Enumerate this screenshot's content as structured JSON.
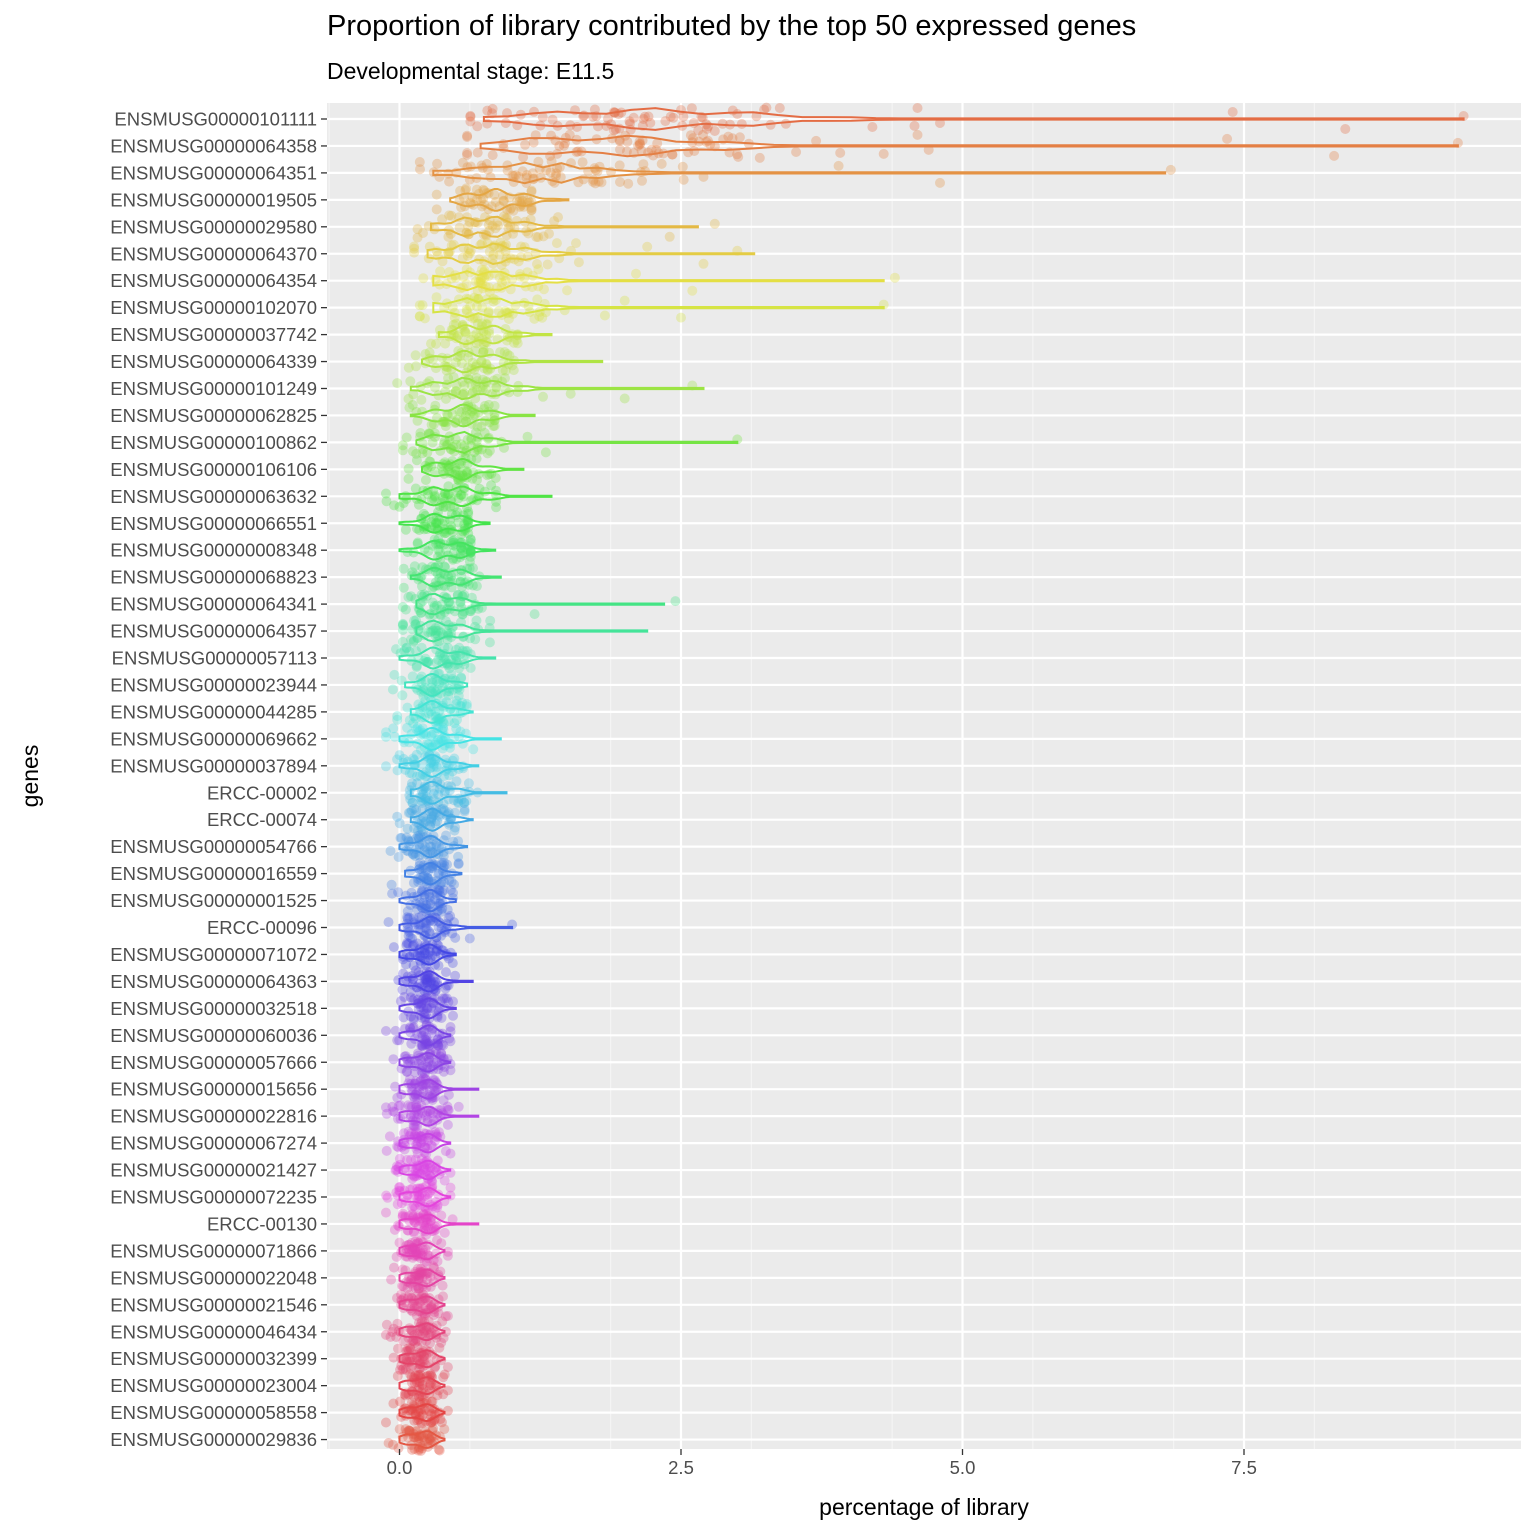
{
  "chart_data": {
    "type": "violin-jitter",
    "title": "Proportion of library contributed by the top 50 expressed genes",
    "subtitle": "Developmental stage: E11.5",
    "xlabel": "percentage of library",
    "ylabel": "genes",
    "xlim": [
      -0.65,
      9.8
    ],
    "x_ticks": [
      0.0,
      2.5,
      5.0,
      7.5
    ],
    "x_tick_labels": [
      "0.0",
      "2.5",
      "5.0",
      "7.5"
    ],
    "grid": true,
    "legend": "none",
    "categories": [
      "ENSMUSG00000101111",
      "ENSMUSG00000064358",
      "ENSMUSG00000064351",
      "ENSMUSG00000019505",
      "ENSMUSG00000029580",
      "ENSMUSG00000064370",
      "ENSMUSG00000064354",
      "ENSMUSG00000102070",
      "ENSMUSG00000037742",
      "ENSMUSG00000064339",
      "ENSMUSG00000101249",
      "ENSMUSG00000062825",
      "ENSMUSG00000100862",
      "ENSMUSG00000106106",
      "ENSMUSG00000063632",
      "ENSMUSG00000066551",
      "ENSMUSG00000008348",
      "ENSMUSG00000068823",
      "ENSMUSG00000064341",
      "ENSMUSG00000064357",
      "ENSMUSG00000057113",
      "ENSMUSG00000023944",
      "ENSMUSG00000044285",
      "ENSMUSG00000069662",
      "ENSMUSG00000037894",
      "ERCC-00002",
      "ERCC-00074",
      "ENSMUSG00000054766",
      "ENSMUSG00000016559",
      "ENSMUSG00000001525",
      "ERCC-00096",
      "ENSMUSG00000071072",
      "ENSMUSG00000064363",
      "ENSMUSG00000032518",
      "ENSMUSG00000060036",
      "ENSMUSG00000057666",
      "ENSMUSG00000015656",
      "ENSMUSG00000022816",
      "ENSMUSG00000067274",
      "ENSMUSG00000021427",
      "ENSMUSG00000072235",
      "ERCC-00130",
      "ENSMUSG00000071866",
      "ENSMUSG00000022048",
      "ENSMUSG00000021546",
      "ENSMUSG00000046434",
      "ENSMUSG00000032399",
      "ENSMUSG00000023004",
      "ENSMUSG00000058558",
      "ENSMUSG00000029836"
    ],
    "series": [
      {
        "min": 0.75,
        "max": 9.45,
        "center": 2.2,
        "spread": 0.95
      },
      {
        "min": 0.72,
        "max": 9.4,
        "center": 1.8,
        "spread": 0.8
      },
      {
        "min": 0.3,
        "max": 6.8,
        "center": 1.2,
        "spread": 0.5
      },
      {
        "min": 0.45,
        "max": 1.5,
        "center": 0.85,
        "spread": 0.25
      },
      {
        "min": 0.28,
        "max": 2.65,
        "center": 0.75,
        "spread": 0.3
      },
      {
        "min": 0.25,
        "max": 3.15,
        "center": 0.75,
        "spread": 0.35
      },
      {
        "min": 0.3,
        "max": 4.3,
        "center": 0.75,
        "spread": 0.35
      },
      {
        "min": 0.3,
        "max": 4.3,
        "center": 0.75,
        "spread": 0.35
      },
      {
        "min": 0.35,
        "max": 1.35,
        "center": 0.7,
        "spread": 0.22
      },
      {
        "min": 0.2,
        "max": 1.8,
        "center": 0.6,
        "spread": 0.25
      },
      {
        "min": 0.1,
        "max": 2.7,
        "center": 0.6,
        "spread": 0.3
      },
      {
        "min": 0.1,
        "max": 1.2,
        "center": 0.55,
        "spread": 0.22
      },
      {
        "min": 0.15,
        "max": 3.0,
        "center": 0.5,
        "spread": 0.25
      },
      {
        "min": 0.2,
        "max": 1.1,
        "center": 0.5,
        "spread": 0.2
      },
      {
        "min": 0.0,
        "max": 1.35,
        "center": 0.45,
        "spread": 0.25
      },
      {
        "min": 0.0,
        "max": 0.8,
        "center": 0.4,
        "spread": 0.18
      },
      {
        "min": 0.0,
        "max": 0.85,
        "center": 0.4,
        "spread": 0.18
      },
      {
        "min": 0.1,
        "max": 0.9,
        "center": 0.4,
        "spread": 0.18
      },
      {
        "min": 0.15,
        "max": 2.35,
        "center": 0.35,
        "spread": 0.2
      },
      {
        "min": 0.15,
        "max": 2.2,
        "center": 0.35,
        "spread": 0.2
      },
      {
        "min": 0.0,
        "max": 0.85,
        "center": 0.35,
        "spread": 0.18
      },
      {
        "min": 0.05,
        "max": 0.6,
        "center": 0.3,
        "spread": 0.15
      },
      {
        "min": 0.1,
        "max": 0.65,
        "center": 0.3,
        "spread": 0.15
      },
      {
        "min": 0.0,
        "max": 0.9,
        "center": 0.3,
        "spread": 0.17
      },
      {
        "min": 0.0,
        "max": 0.7,
        "center": 0.3,
        "spread": 0.15
      },
      {
        "min": 0.1,
        "max": 0.95,
        "center": 0.3,
        "spread": 0.17
      },
      {
        "min": 0.1,
        "max": 0.65,
        "center": 0.3,
        "spread": 0.14
      },
      {
        "min": 0.0,
        "max": 0.6,
        "center": 0.25,
        "spread": 0.14
      },
      {
        "min": 0.05,
        "max": 0.55,
        "center": 0.25,
        "spread": 0.13
      },
      {
        "min": 0.0,
        "max": 0.5,
        "center": 0.25,
        "spread": 0.13
      },
      {
        "min": 0.0,
        "max": 1.0,
        "center": 0.25,
        "spread": 0.15
      },
      {
        "min": 0.0,
        "max": 0.5,
        "center": 0.22,
        "spread": 0.13
      },
      {
        "min": 0.0,
        "max": 0.65,
        "center": 0.22,
        "spread": 0.13
      },
      {
        "min": 0.0,
        "max": 0.5,
        "center": 0.22,
        "spread": 0.12
      },
      {
        "min": 0.0,
        "max": 0.45,
        "center": 0.22,
        "spread": 0.12
      },
      {
        "min": 0.0,
        "max": 0.45,
        "center": 0.2,
        "spread": 0.12
      },
      {
        "min": 0.0,
        "max": 0.7,
        "center": 0.2,
        "spread": 0.13
      },
      {
        "min": 0.0,
        "max": 0.7,
        "center": 0.2,
        "spread": 0.13
      },
      {
        "min": 0.0,
        "max": 0.45,
        "center": 0.2,
        "spread": 0.12
      },
      {
        "min": 0.0,
        "max": 0.45,
        "center": 0.2,
        "spread": 0.12
      },
      {
        "min": 0.0,
        "max": 0.45,
        "center": 0.2,
        "spread": 0.12
      },
      {
        "min": 0.0,
        "max": 0.7,
        "center": 0.2,
        "spread": 0.13
      },
      {
        "min": 0.0,
        "max": 0.4,
        "center": 0.18,
        "spread": 0.11
      },
      {
        "min": 0.0,
        "max": 0.4,
        "center": 0.18,
        "spread": 0.11
      },
      {
        "min": 0.0,
        "max": 0.4,
        "center": 0.18,
        "spread": 0.11
      },
      {
        "min": 0.0,
        "max": 0.4,
        "center": 0.18,
        "spread": 0.11
      },
      {
        "min": 0.0,
        "max": 0.4,
        "center": 0.18,
        "spread": 0.11
      },
      {
        "min": 0.0,
        "max": 0.4,
        "center": 0.18,
        "spread": 0.11
      },
      {
        "min": 0.0,
        "max": 0.4,
        "center": 0.18,
        "spread": 0.11
      },
      {
        "min": 0.0,
        "max": 0.4,
        "center": 0.18,
        "spread": 0.11
      }
    ],
    "high_points": [
      {
        "gene_index": 0,
        "x": [
          9.45,
          8.4,
          7.4,
          4.8,
          4.6,
          4.2,
          3.0,
          2.8,
          2.5
        ]
      },
      {
        "gene_index": 1,
        "x": [
          9.4,
          8.3,
          7.35,
          4.7,
          4.6,
          4.3,
          3.7,
          3.2
        ]
      },
      {
        "gene_index": 2,
        "x": [
          6.85,
          4.8,
          3.9,
          2.7
        ]
      },
      {
        "gene_index": 6,
        "x": [
          4.4,
          2.6,
          2.1
        ]
      },
      {
        "gene_index": 7,
        "x": [
          4.3,
          2.5,
          2.0
        ]
      },
      {
        "gene_index": 5,
        "x": [
          3.0,
          2.7,
          2.2
        ]
      },
      {
        "gene_index": 4,
        "x": [
          2.8,
          2.4
        ]
      },
      {
        "gene_index": 10,
        "x": [
          2.6,
          2.0
        ]
      },
      {
        "gene_index": 12,
        "x": [
          3.0,
          1.3
        ]
      },
      {
        "gene_index": 18,
        "x": [
          2.45,
          1.2
        ]
      },
      {
        "gene_index": 19,
        "x": [
          0.8
        ]
      },
      {
        "gene_index": 30,
        "x": [
          1.0
        ]
      }
    ]
  }
}
